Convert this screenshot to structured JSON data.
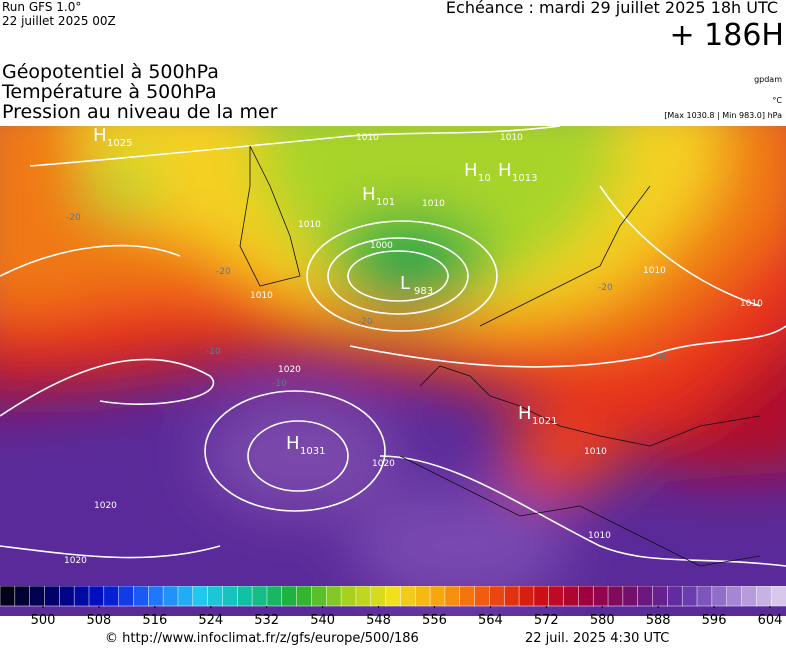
{
  "header": {
    "run": "Run GFS 1.0°",
    "date": "22 juillet 2025 00Z",
    "echeance": "Echéance : mardi 29 juillet 2025 18h UTC",
    "lead": "+ 186H"
  },
  "titles": [
    "Géopotentiel à 500hPa",
    "Température à 500hPa",
    "Pression au niveau de la mer"
  ],
  "units": [
    "gpdam",
    "°C",
    "[Max 1030.8 | Min 983.0] hPa"
  ],
  "pressure_centers": [
    {
      "type": "H",
      "value": "1025"
    },
    {
      "type": "H",
      "value": "101"
    },
    {
      "type": "H",
      "value": "10"
    },
    {
      "type": "H",
      "value": "1013"
    },
    {
      "type": "L",
      "value": "983"
    },
    {
      "type": "H",
      "value": "1031"
    },
    {
      "type": "H",
      "value": "1021"
    }
  ],
  "isobar_labels": [
    "1010",
    "1010",
    "1010",
    "1010",
    "1010",
    "1000",
    "1010",
    "1010",
    "1020",
    "1020",
    "1020",
    "1020",
    "1010",
    "1010"
  ],
  "temperature_labels": [
    "-20",
    "-20",
    "-20",
    "-20",
    "-10",
    "-10",
    "-10"
  ],
  "colorbar": {
    "ticks": [
      500,
      508,
      516,
      524,
      532,
      540,
      548,
      556,
      564,
      572,
      580,
      588,
      596,
      604
    ]
  },
  "footer": {
    "url": "© http://www.infoclimat.fr/z/gfs/europe/500/186",
    "time": "22 juil. 2025  4:30 UTC"
  }
}
